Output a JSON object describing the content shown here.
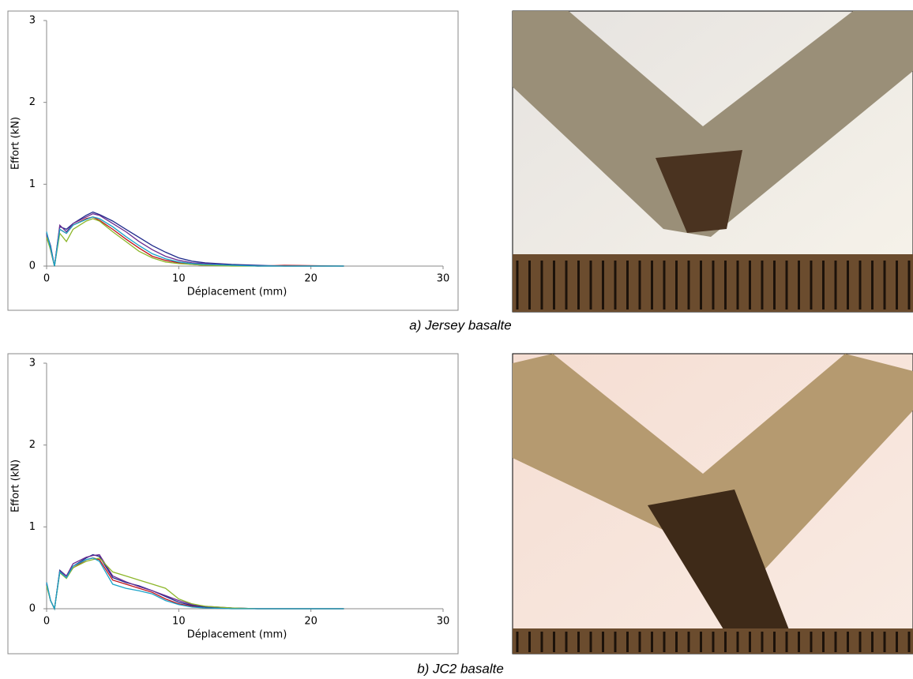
{
  "chart_data": [
    {
      "type": "line",
      "caption": "a) Jersey basalte",
      "xlabel": "Déplacement (mm)",
      "ylabel": "Effort (kN)",
      "xlim": [
        0,
        30
      ],
      "xticks": [
        0,
        10,
        20,
        30
      ],
      "ylim": [
        0,
        3
      ],
      "yticks": [
        0,
        1,
        2,
        3
      ],
      "grid": false,
      "x": [
        0,
        0.3,
        0.6,
        1,
        1.5,
        2,
        3,
        3.5,
        4,
        5,
        6,
        7,
        8,
        9,
        10,
        11,
        12,
        14,
        16,
        18,
        22.5
      ],
      "series": [
        {
          "color": "#c0141c",
          "values": [
            0.4,
            0.2,
            0,
            0.45,
            0.4,
            0.5,
            0.58,
            0.6,
            0.56,
            0.45,
            0.33,
            0.22,
            0.12,
            0.07,
            0.04,
            0.02,
            0.01,
            0.01,
            0,
            0.01,
            0
          ]
        },
        {
          "color": "#1f2a8c",
          "values": [
            0.4,
            0.25,
            0,
            0.48,
            0.45,
            0.52,
            0.62,
            0.66,
            0.63,
            0.55,
            0.45,
            0.35,
            0.25,
            0.17,
            0.1,
            0.06,
            0.04,
            0.02,
            0.01,
            0,
            0
          ]
        },
        {
          "color": "#6a2c91",
          "values": [
            0.38,
            0.2,
            0,
            0.5,
            0.42,
            0.52,
            0.6,
            0.64,
            0.62,
            0.52,
            0.42,
            0.3,
            0.2,
            0.12,
            0.07,
            0.04,
            0.03,
            0.01,
            0,
            0,
            0
          ]
        },
        {
          "color": "#8db62a",
          "values": [
            0.35,
            0.2,
            0,
            0.4,
            0.3,
            0.45,
            0.55,
            0.58,
            0.55,
            0.42,
            0.3,
            0.18,
            0.1,
            0.05,
            0.03,
            0.02,
            0.01,
            0,
            0,
            0,
            0
          ]
        },
        {
          "color": "#1aa3c9",
          "values": [
            0.42,
            0.22,
            0,
            0.45,
            0.4,
            0.5,
            0.57,
            0.6,
            0.58,
            0.48,
            0.36,
            0.25,
            0.15,
            0.09,
            0.05,
            0.03,
            0.02,
            0.01,
            0,
            0,
            0
          ]
        }
      ]
    },
    {
      "type": "line",
      "caption": "b) JC2 basalte",
      "xlabel": "Déplacement (mm)",
      "ylabel": "Effort (kN)",
      "xlim": [
        0,
        30
      ],
      "xticks": [
        0,
        10,
        20,
        30
      ],
      "ylim": [
        0,
        3
      ],
      "yticks": [
        0,
        1,
        2,
        3
      ],
      "grid": false,
      "x": [
        0,
        0.3,
        0.6,
        1,
        1.5,
        2,
        3,
        3.5,
        4,
        5,
        6,
        7,
        8,
        9,
        10,
        11,
        12,
        14,
        16,
        18,
        22.5
      ],
      "series": [
        {
          "color": "#c0141c",
          "values": [
            0.3,
            0.1,
            0,
            0.45,
            0.38,
            0.5,
            0.6,
            0.62,
            0.6,
            0.35,
            0.3,
            0.25,
            0.2,
            0.12,
            0.06,
            0.03,
            0.01,
            0,
            0,
            0,
            0
          ]
        },
        {
          "color": "#1f2a8c",
          "values": [
            0.32,
            0.1,
            0,
            0.47,
            0.4,
            0.52,
            0.62,
            0.66,
            0.64,
            0.38,
            0.32,
            0.28,
            0.22,
            0.15,
            0.08,
            0.04,
            0.02,
            0.01,
            0,
            0,
            0
          ]
        },
        {
          "color": "#6a2c91",
          "values": [
            0.3,
            0.1,
            0,
            0.46,
            0.4,
            0.55,
            0.63,
            0.65,
            0.66,
            0.4,
            0.33,
            0.27,
            0.22,
            0.16,
            0.1,
            0.05,
            0.03,
            0.01,
            0,
            0,
            0
          ]
        },
        {
          "color": "#8db62a",
          "values": [
            0.28,
            0.1,
            0,
            0.44,
            0.37,
            0.5,
            0.58,
            0.6,
            0.62,
            0.45,
            0.4,
            0.35,
            0.3,
            0.25,
            0.12,
            0.06,
            0.03,
            0.01,
            0,
            0,
            0
          ]
        },
        {
          "color": "#1aa3c9",
          "values": [
            0.32,
            0.1,
            0,
            0.45,
            0.38,
            0.52,
            0.6,
            0.62,
            0.58,
            0.3,
            0.25,
            0.22,
            0.18,
            0.1,
            0.05,
            0.02,
            0.01,
            0,
            0,
            0,
            0
          ]
        }
      ]
    }
  ]
}
